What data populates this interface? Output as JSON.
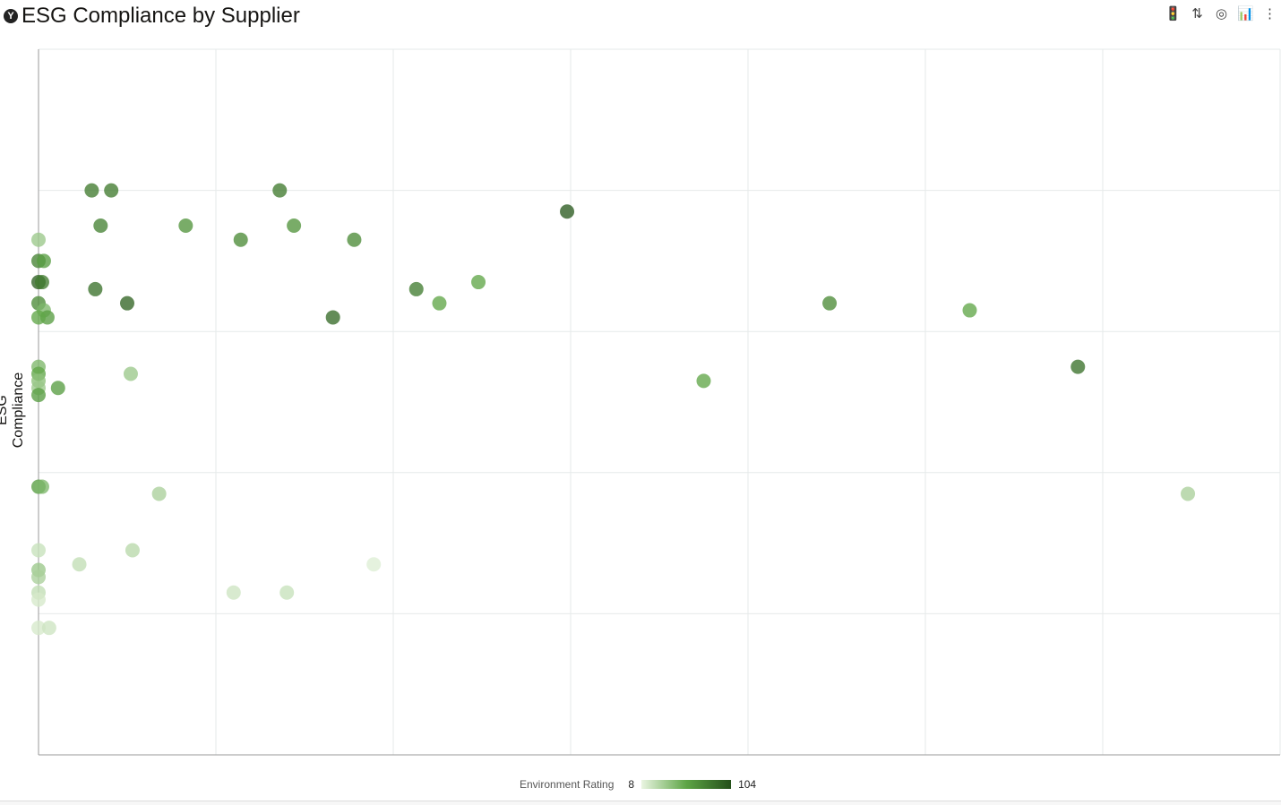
{
  "title": "ESG Compliance by Supplier",
  "toolbar": [
    {
      "name": "traffic-light-icon",
      "glyph": "🚦"
    },
    {
      "name": "sort-icon",
      "glyph": "⇅"
    },
    {
      "name": "target-icon",
      "glyph": "◎"
    },
    {
      "name": "chart-settings-icon",
      "glyph": "📊"
    },
    {
      "name": "more-icon",
      "glyph": "⋮"
    }
  ],
  "chart_data": {
    "type": "scatter",
    "title": "ESG Compliance by Supplier",
    "xlabel": "",
    "ylabel": "ESG Compliance",
    "xlim": [
      0,
      7
    ],
    "ylim": [
      0,
      5
    ],
    "grid": true,
    "color_legend": {
      "label": "Environment Rating",
      "min": 8,
      "max": 104,
      "colors": [
        "#eaf5e2",
        "#5ea546",
        "#24501a"
      ],
      "placement": "bottom"
    },
    "points": [
      {
        "x": 0,
        "y": 3.65,
        "c": 35
      },
      {
        "x": 0,
        "y": 3.5,
        "c": 75
      },
      {
        "x": 0.03,
        "y": 3.5,
        "c": 60
      },
      {
        "x": 0,
        "y": 3.35,
        "c": 95
      },
      {
        "x": 0.02,
        "y": 3.35,
        "c": 80
      },
      {
        "x": 0,
        "y": 3.2,
        "c": 70
      },
      {
        "x": 0.03,
        "y": 3.15,
        "c": 45
      },
      {
        "x": 0.05,
        "y": 3.1,
        "c": 60
      },
      {
        "x": 0,
        "y": 3.1,
        "c": 55
      },
      {
        "x": 0.3,
        "y": 4.0,
        "c": 80
      },
      {
        "x": 0.41,
        "y": 4.0,
        "c": 80
      },
      {
        "x": 1.36,
        "y": 4.0,
        "c": 80
      },
      {
        "x": 0.35,
        "y": 3.75,
        "c": 75
      },
      {
        "x": 0.83,
        "y": 3.75,
        "c": 65
      },
      {
        "x": 1.44,
        "y": 3.75,
        "c": 65
      },
      {
        "x": 1.14,
        "y": 3.65,
        "c": 70
      },
      {
        "x": 1.78,
        "y": 3.65,
        "c": 70
      },
      {
        "x": 2.98,
        "y": 3.85,
        "c": 98
      },
      {
        "x": 0.32,
        "y": 3.3,
        "c": 85
      },
      {
        "x": 0.5,
        "y": 3.2,
        "c": 92
      },
      {
        "x": 1.66,
        "y": 3.1,
        "c": 88
      },
      {
        "x": 2.13,
        "y": 3.3,
        "c": 78
      },
      {
        "x": 2.26,
        "y": 3.2,
        "c": 55
      },
      {
        "x": 2.48,
        "y": 3.35,
        "c": 55
      },
      {
        "x": 4.46,
        "y": 3.2,
        "c": 70
      },
      {
        "x": 5.25,
        "y": 3.15,
        "c": 55
      },
      {
        "x": 5.86,
        "y": 2.75,
        "c": 85
      },
      {
        "x": 3.75,
        "y": 2.65,
        "c": 55
      },
      {
        "x": 0,
        "y": 2.75,
        "c": 45
      },
      {
        "x": 0,
        "y": 2.7,
        "c": 55
      },
      {
        "x": 0,
        "y": 2.65,
        "c": 40
      },
      {
        "x": 0,
        "y": 2.6,
        "c": 35
      },
      {
        "x": 0,
        "y": 2.55,
        "c": 60
      },
      {
        "x": 0.11,
        "y": 2.6,
        "c": 60
      },
      {
        "x": 0.52,
        "y": 2.7,
        "c": 35
      },
      {
        "x": 0,
        "y": 1.9,
        "c": 60
      },
      {
        "x": 0.02,
        "y": 1.9,
        "c": 45
      },
      {
        "x": 0.68,
        "y": 1.85,
        "c": 30
      },
      {
        "x": 6.48,
        "y": 1.85,
        "c": 30
      },
      {
        "x": 0,
        "y": 1.45,
        "c": 20
      },
      {
        "x": 0.53,
        "y": 1.45,
        "c": 25
      },
      {
        "x": 0.23,
        "y": 1.35,
        "c": 22
      },
      {
        "x": 1.89,
        "y": 1.35,
        "c": 12
      },
      {
        "x": 0,
        "y": 1.31,
        "c": 35
      },
      {
        "x": 0,
        "y": 1.26,
        "c": 30
      },
      {
        "x": 0,
        "y": 1.15,
        "c": 22
      },
      {
        "x": 0,
        "y": 1.1,
        "c": 15
      },
      {
        "x": 1.1,
        "y": 1.15,
        "c": 18
      },
      {
        "x": 1.4,
        "y": 1.15,
        "c": 20
      },
      {
        "x": 0,
        "y": 0.9,
        "c": 15
      },
      {
        "x": 0.06,
        "y": 0.9,
        "c": 18
      }
    ]
  }
}
